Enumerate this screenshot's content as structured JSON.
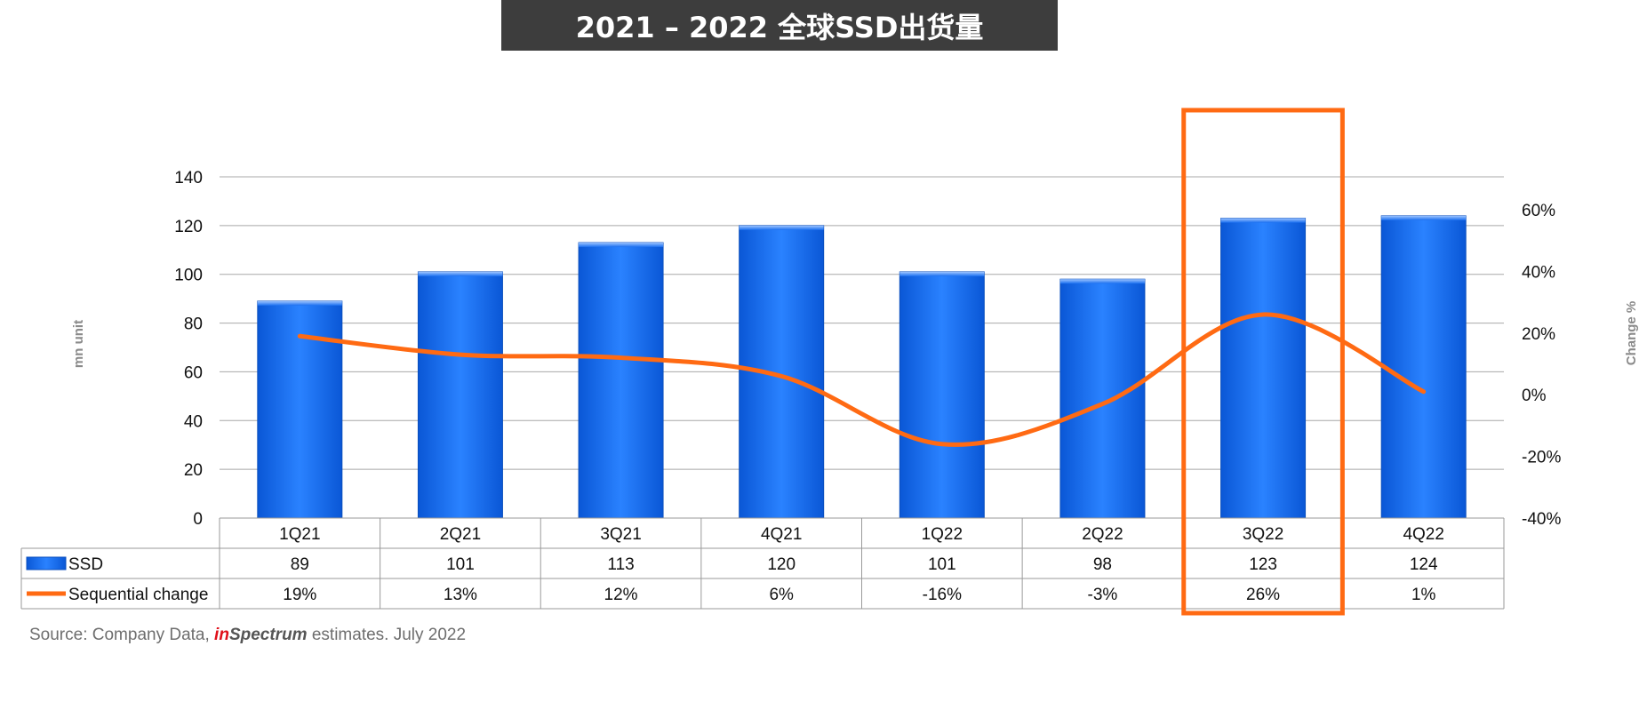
{
  "title": "2021 – 2022 全球SSD出货量",
  "chart_data": {
    "type": "bar",
    "categories": [
      "1Q21",
      "2Q21",
      "3Q21",
      "4Q21",
      "1Q22",
      "2Q22",
      "3Q22",
      "4Q22"
    ],
    "series": [
      {
        "name": "SSD",
        "type": "bar",
        "axis": "left",
        "values": [
          89,
          101,
          113,
          120,
          101,
          98,
          123,
          124
        ],
        "color": "#1a6ff0"
      },
      {
        "name": "Sequential change",
        "type": "line",
        "axis": "right",
        "values": [
          19,
          13,
          12,
          6,
          -16,
          -3,
          26,
          1
        ],
        "color": "#ff6a13"
      }
    ],
    "row_labels": [
      "89",
      "101",
      "113",
      "120",
      "101",
      "98",
      "123",
      "124"
    ],
    "change_labels": [
      "19%",
      "13%",
      "12%",
      "6%",
      "-16%",
      "-3%",
      "26%",
      "1%"
    ],
    "ylabel": "mn unit",
    "y2label": "Change %",
    "ylim": [
      0,
      140
    ],
    "yticks": [
      "0",
      "20",
      "40",
      "60",
      "80",
      "100",
      "120",
      "140"
    ],
    "y2lim": [
      -40,
      60
    ],
    "y2ticks": [
      "-40%",
      "-20%",
      "0%",
      "20%",
      "40%",
      "60%"
    ],
    "grid": true,
    "highlight": {
      "category": "3Q22",
      "color": "#ff6a13"
    }
  },
  "source": {
    "prefix": "Source: Company Data, ",
    "brand_in": "in",
    "brand_spectrum": "Spectrum",
    "suffix": " estimates. July 2022"
  }
}
